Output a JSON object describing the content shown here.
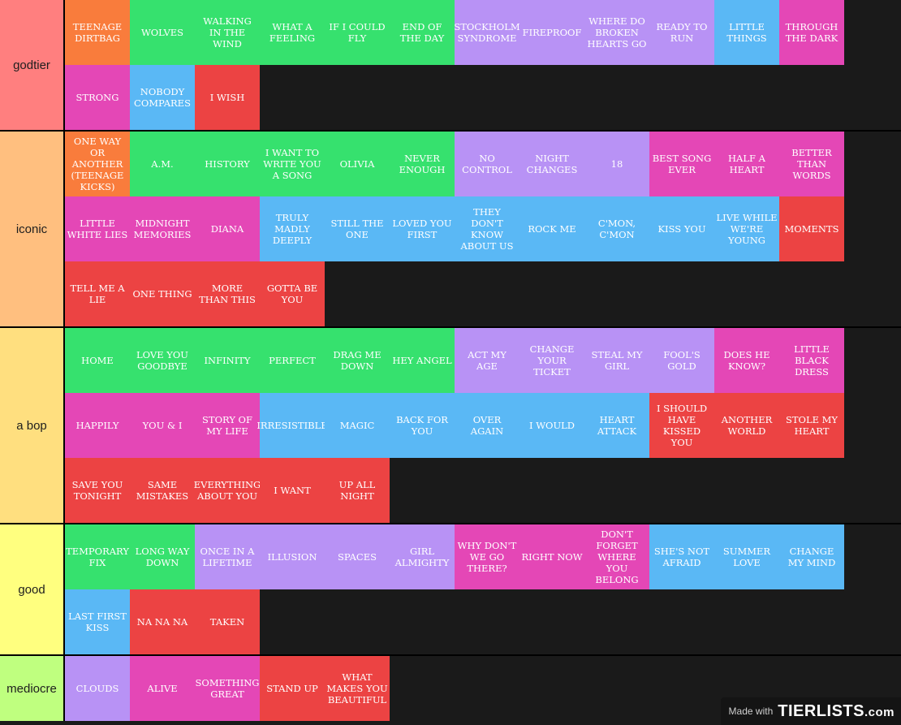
{
  "tiers": [
    {
      "label": "godtier",
      "color": "#ff7f7f",
      "items": [
        {
          "title": "TEENAGE DIRTBAG",
          "color": "orange"
        },
        {
          "title": "WOLVES",
          "color": "green"
        },
        {
          "title": "WALKING IN THE WIND",
          "color": "green"
        },
        {
          "title": "WHAT A FEELING",
          "color": "green"
        },
        {
          "title": "IF I COULD FLY",
          "color": "green"
        },
        {
          "title": "END OF THE DAY",
          "color": "green"
        },
        {
          "title": "STOCKHOLM SYNDROME",
          "color": "purple"
        },
        {
          "title": "FIREPROOF",
          "color": "purple"
        },
        {
          "title": "WHERE DO BROKEN HEARTS GO",
          "color": "purple"
        },
        {
          "title": "READY TO RUN",
          "color": "purple"
        },
        {
          "title": "LITTLE THINGS",
          "color": "blue"
        },
        {
          "title": "THROUGH THE DARK",
          "color": "pink"
        },
        {
          "title": "STRONG",
          "color": "pink"
        },
        {
          "title": "NOBODY COMPARES",
          "color": "blue"
        },
        {
          "title": "I WISH",
          "color": "red"
        }
      ]
    },
    {
      "label": "iconic",
      "color": "#ffbf7f",
      "items": [
        {
          "title": "ONE WAY OR ANOTHER (TEENAGE KICKS)",
          "color": "orange"
        },
        {
          "title": "A.M.",
          "color": "green"
        },
        {
          "title": "HISTORY",
          "color": "green"
        },
        {
          "title": "I WANT TO WRITE YOU A SONG",
          "color": "green"
        },
        {
          "title": "OLIVIA",
          "color": "green"
        },
        {
          "title": "NEVER ENOUGH",
          "color": "green"
        },
        {
          "title": "NO CONTROL",
          "color": "purple"
        },
        {
          "title": "NIGHT CHANGES",
          "color": "purple"
        },
        {
          "title": "18",
          "color": "purple"
        },
        {
          "title": "BEST SONG EVER",
          "color": "pink"
        },
        {
          "title": "HALF A HEART",
          "color": "pink"
        },
        {
          "title": "BETTER THAN WORDS",
          "color": "pink"
        },
        {
          "title": "LITTLE WHITE LIES",
          "color": "pink"
        },
        {
          "title": "MIDNIGHT MEMORIES",
          "color": "pink"
        },
        {
          "title": "DIANA",
          "color": "pink"
        },
        {
          "title": "TRULY MADLY DEEPLY",
          "color": "blue"
        },
        {
          "title": "STILL THE ONE",
          "color": "blue"
        },
        {
          "title": "LOVED YOU FIRST",
          "color": "blue"
        },
        {
          "title": "THEY DON'T KNOW ABOUT US",
          "color": "blue"
        },
        {
          "title": "ROCK ME",
          "color": "blue"
        },
        {
          "title": "C'MON, C'MON",
          "color": "blue"
        },
        {
          "title": "KISS YOU",
          "color": "blue"
        },
        {
          "title": "LIVE WHILE WE'RE YOUNG",
          "color": "blue"
        },
        {
          "title": "MOMENTS",
          "color": "red"
        },
        {
          "title": "TELL ME A LIE",
          "color": "red"
        },
        {
          "title": "ONE THING",
          "color": "red"
        },
        {
          "title": "MORE THAN THIS",
          "color": "red"
        },
        {
          "title": "GOTTA BE YOU",
          "color": "red"
        }
      ]
    },
    {
      "label": "a bop",
      "color": "#ffdf7f",
      "items": [
        {
          "title": "HOME",
          "color": "green"
        },
        {
          "title": "LOVE YOU GOODBYE",
          "color": "green"
        },
        {
          "title": "INFINITY",
          "color": "green"
        },
        {
          "title": "PERFECT",
          "color": "green"
        },
        {
          "title": "DRAG ME DOWN",
          "color": "green"
        },
        {
          "title": "HEY ANGEL",
          "color": "green"
        },
        {
          "title": "ACT MY AGE",
          "color": "purple"
        },
        {
          "title": "CHANGE YOUR TICKET",
          "color": "purple"
        },
        {
          "title": "STEAL MY GIRL",
          "color": "purple"
        },
        {
          "title": "FOOL'S GOLD",
          "color": "purple"
        },
        {
          "title": "DOES HE KNOW?",
          "color": "pink"
        },
        {
          "title": "LITTLE BLACK DRESS",
          "color": "pink"
        },
        {
          "title": "HAPPILY",
          "color": "pink"
        },
        {
          "title": "YOU & I",
          "color": "pink"
        },
        {
          "title": "STORY OF MY LIFE",
          "color": "pink"
        },
        {
          "title": "IRRESISTIBLE",
          "color": "blue"
        },
        {
          "title": "MAGIC",
          "color": "blue"
        },
        {
          "title": "BACK FOR YOU",
          "color": "blue"
        },
        {
          "title": "OVER AGAIN",
          "color": "blue"
        },
        {
          "title": "I WOULD",
          "color": "blue"
        },
        {
          "title": "HEART ATTACK",
          "color": "blue"
        },
        {
          "title": "I SHOULD HAVE KISSED YOU",
          "color": "red"
        },
        {
          "title": "ANOTHER WORLD",
          "color": "red"
        },
        {
          "title": "STOLE MY HEART",
          "color": "red"
        },
        {
          "title": "SAVE YOU TONIGHT",
          "color": "red"
        },
        {
          "title": "SAME MISTAKES",
          "color": "red"
        },
        {
          "title": "EVERYTHING ABOUT YOU",
          "color": "red"
        },
        {
          "title": "I WANT",
          "color": "red"
        },
        {
          "title": "UP ALL NIGHT",
          "color": "red"
        }
      ]
    },
    {
      "label": "good",
      "color": "#ffff7f",
      "items": [
        {
          "title": "TEMPORARY FIX",
          "color": "green"
        },
        {
          "title": "LONG WAY DOWN",
          "color": "green"
        },
        {
          "title": "ONCE IN A LIFETIME",
          "color": "purple"
        },
        {
          "title": "ILLUSION",
          "color": "purple"
        },
        {
          "title": "SPACES",
          "color": "purple"
        },
        {
          "title": "GIRL ALMIGHTY",
          "color": "purple"
        },
        {
          "title": "WHY DON'T WE GO THERE?",
          "color": "pink"
        },
        {
          "title": "RIGHT NOW",
          "color": "pink"
        },
        {
          "title": "DON'T FORGET WHERE YOU BELONG",
          "color": "pink"
        },
        {
          "title": "SHE'S NOT AFRAID",
          "color": "blue"
        },
        {
          "title": "SUMMER LOVE",
          "color": "blue"
        },
        {
          "title": "CHANGE MY MIND",
          "color": "blue"
        },
        {
          "title": "LAST FIRST KISS",
          "color": "blue"
        },
        {
          "title": "NA NA NA",
          "color": "red"
        },
        {
          "title": "TAKEN",
          "color": "red"
        }
      ]
    },
    {
      "label": "mediocre",
      "color": "#bfff7f",
      "items": [
        {
          "title": "CLOUDS",
          "color": "purple"
        },
        {
          "title": "ALIVE",
          "color": "pink"
        },
        {
          "title": "SOMETHING GREAT",
          "color": "pink"
        },
        {
          "title": "STAND UP",
          "color": "red"
        },
        {
          "title": "WHAT MAKES YOU BEAUTIFUL",
          "color": "red"
        }
      ]
    }
  ],
  "watermark": {
    "made_with": "Made with",
    "brand": "TIERLISTS",
    "suffix": ".com"
  }
}
